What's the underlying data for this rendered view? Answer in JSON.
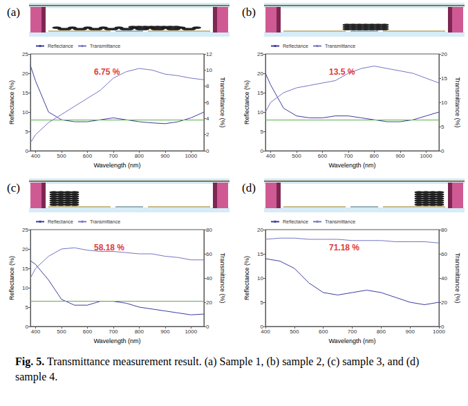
{
  "chart_data": [
    {
      "title": "(a)",
      "type": "line",
      "x_label": "Wavelength (nm)",
      "y_label": "Reflectance (%)",
      "y2_label": "Transmittance (%)",
      "annotation": "6.75 %",
      "legend": "upper left",
      "grid": false,
      "reference_line": 8,
      "x": [
        380,
        400,
        450,
        500,
        550,
        600,
        650,
        700,
        750,
        800,
        850,
        900,
        950,
        1000,
        1050
      ],
      "xlim": [
        380,
        1050
      ],
      "xticks": [
        400,
        500,
        600,
        700,
        800,
        900,
        1000
      ],
      "ylim": [
        0,
        25
      ],
      "yticks": [
        0,
        5,
        10,
        15,
        20,
        25
      ],
      "y2lim": [
        0,
        12
      ],
      "y2ticks": [
        0,
        2,
        4,
        6,
        8,
        10,
        12
      ],
      "series": [
        {
          "name": "Reflectance",
          "color": "#3c3c9c",
          "values": [
            22,
            18,
            10,
            8,
            7.5,
            7.5,
            8,
            8.5,
            8,
            7.5,
            7.2,
            7,
            7.5,
            8.5,
            10
          ]
        },
        {
          "name": "Transmittance",
          "color": "#7474c4",
          "axis": "y2",
          "values": [
            1,
            2,
            3.5,
            4.5,
            5.5,
            6.5,
            7.5,
            9,
            9.8,
            10.2,
            10,
            9.5,
            9.3,
            9,
            8.8
          ]
        }
      ]
    },
    {
      "title": "(b)",
      "type": "line",
      "x_label": "Wavelength (nm)",
      "y_label": "Reflectance (%)",
      "y2_label": "Transmittance (%)",
      "annotation": "13.5 %",
      "legend": "upper left",
      "grid": false,
      "reference_line": 8,
      "x": [
        380,
        400,
        450,
        500,
        550,
        600,
        650,
        700,
        750,
        800,
        850,
        900,
        950,
        1000,
        1050
      ],
      "xlim": [
        380,
        1050
      ],
      "xticks": [
        400,
        500,
        600,
        700,
        800,
        900,
        1000
      ],
      "ylim": [
        0,
        25
      ],
      "yticks": [
        0,
        5,
        10,
        15,
        20,
        25
      ],
      "y2lim": [
        0,
        20
      ],
      "y2ticks": [
        0,
        5,
        10,
        15,
        20
      ],
      "series": [
        {
          "name": "Reflectance",
          "color": "#3c3c9c",
          "values": [
            20,
            17,
            11,
            9,
            8.5,
            8.5,
            9,
            9,
            8.5,
            8,
            7.5,
            7.5,
            8,
            9,
            10
          ]
        },
        {
          "name": "Transmittance",
          "color": "#7474c4",
          "axis": "y2",
          "values": [
            8,
            10,
            12,
            13,
            13.5,
            14,
            14.5,
            16,
            17,
            17.5,
            17,
            16.5,
            16,
            15,
            14
          ]
        }
      ]
    },
    {
      "title": "(c)",
      "type": "line",
      "x_label": "Wavelength (nm)",
      "y_label": "Reflectance (%)",
      "y2_label": "Transmittance (%)",
      "annotation": "58.18 %",
      "legend": "upper left",
      "grid": false,
      "reference_line": 6.5,
      "x": [
        380,
        400,
        450,
        500,
        550,
        600,
        650,
        700,
        750,
        800,
        850,
        900,
        950,
        1000,
        1050
      ],
      "xlim": [
        380,
        1050
      ],
      "xticks": [
        400,
        500,
        600,
        700,
        800,
        900,
        1000
      ],
      "ylim": [
        0,
        25
      ],
      "yticks": [
        0,
        5,
        10,
        15,
        20,
        25
      ],
      "y2lim": [
        0,
        80
      ],
      "y2ticks": [
        0,
        20,
        40,
        60,
        80
      ],
      "series": [
        {
          "name": "Reflectance",
          "color": "#3c3c9c",
          "values": [
            17,
            16,
            12,
            7,
            5.5,
            5.5,
            6.5,
            6.5,
            6,
            5,
            4.5,
            4,
            3.5,
            3,
            3.2
          ]
        },
        {
          "name": "Transmittance",
          "color": "#7474c4",
          "axis": "y2",
          "values": [
            40,
            48,
            58,
            64,
            65,
            63,
            62,
            62,
            61,
            60,
            60,
            58,
            57,
            55,
            55
          ]
        }
      ]
    },
    {
      "title": "(d)",
      "type": "line",
      "x_label": "Wavelength (nm)",
      "y_label": "Reflectance (%)",
      "y2_label": "Transmittance (%)",
      "annotation": "71.18 %",
      "legend": "upper left",
      "grid": false,
      "x": [
        400,
        450,
        500,
        550,
        600,
        650,
        700,
        750,
        800,
        850,
        900,
        950,
        1000
      ],
      "xlim": [
        400,
        1000
      ],
      "xticks": [
        400,
        500,
        600,
        700,
        800,
        900,
        1000
      ],
      "ylim": [
        0,
        20
      ],
      "yticks": [
        0,
        5,
        10,
        15,
        20
      ],
      "y2lim": [
        0,
        80
      ],
      "y2ticks": [
        0,
        20,
        40,
        60,
        80
      ],
      "series": [
        {
          "name": "Reflectance",
          "color": "#3c3c9c",
          "values": [
            14,
            13.5,
            12,
            9,
            7,
            6.5,
            7,
            7.5,
            7,
            6,
            5,
            4.5,
            5
          ]
        },
        {
          "name": "Transmittance",
          "color": "#7474c4",
          "axis": "y2",
          "values": [
            72,
            73,
            73,
            72,
            72,
            72,
            71,
            71,
            71,
            70,
            70,
            70,
            69
          ]
        }
      ]
    }
  ],
  "caption": {
    "label": "Fig. 5.",
    "text": "Transmittance measurement result. (a) Sample 1, (b) sample 2, (c) sample 3, and (d) sample 4."
  }
}
